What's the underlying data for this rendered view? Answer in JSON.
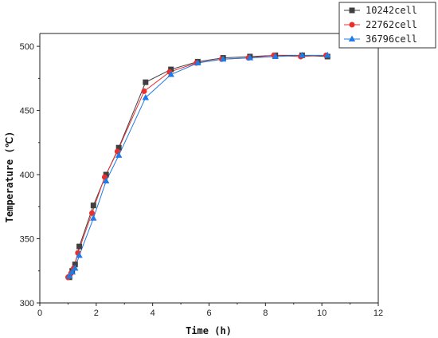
{
  "chart_data": {
    "type": "line",
    "xlabel": "Time (h)",
    "ylabel": "Temperature (℃)",
    "xlim": [
      0,
      12
    ],
    "ylim": [
      300,
      510
    ],
    "x_ticks": [
      "0",
      "2",
      "4",
      "6",
      "8",
      "10",
      "12"
    ],
    "y_ticks": [
      "300",
      "350",
      "400",
      "450",
      "500"
    ],
    "grid": false,
    "legend_position": "top-right",
    "series": [
      {
        "name": "10242cell",
        "color": "#404040",
        "marker": "square",
        "x": [
          1.05,
          1.15,
          1.25,
          1.4,
          1.9,
          2.35,
          2.8,
          3.75,
          4.65,
          5.6,
          6.5,
          7.45,
          8.35,
          9.3,
          10.2
        ],
        "y": [
          320,
          325,
          330,
          344,
          376,
          400,
          421,
          472,
          482,
          488,
          491,
          492,
          493,
          493,
          492
        ]
      },
      {
        "name": "22762cell",
        "color": "#e8312e",
        "marker": "circle",
        "x": [
          1.0,
          1.1,
          1.2,
          1.35,
          1.85,
          2.3,
          2.75,
          3.7,
          4.6,
          5.55,
          6.45,
          7.4,
          8.3,
          9.25,
          10.15
        ],
        "y": [
          320,
          323,
          327,
          339,
          370,
          398,
          418,
          465,
          480,
          487,
          490,
          491,
          493,
          492,
          493
        ]
      },
      {
        "name": "36796cell",
        "color": "#1e7be8",
        "marker": "triangle",
        "x": [
          1.05,
          1.15,
          1.25,
          1.4,
          1.9,
          2.35,
          2.8,
          3.75,
          4.65,
          5.6,
          6.5,
          7.45,
          8.35,
          9.3,
          10.2
        ],
        "y": [
          321,
          324,
          327,
          337,
          366,
          395,
          415,
          460,
          478,
          487,
          490,
          491,
          492,
          493,
          493
        ]
      }
    ]
  }
}
